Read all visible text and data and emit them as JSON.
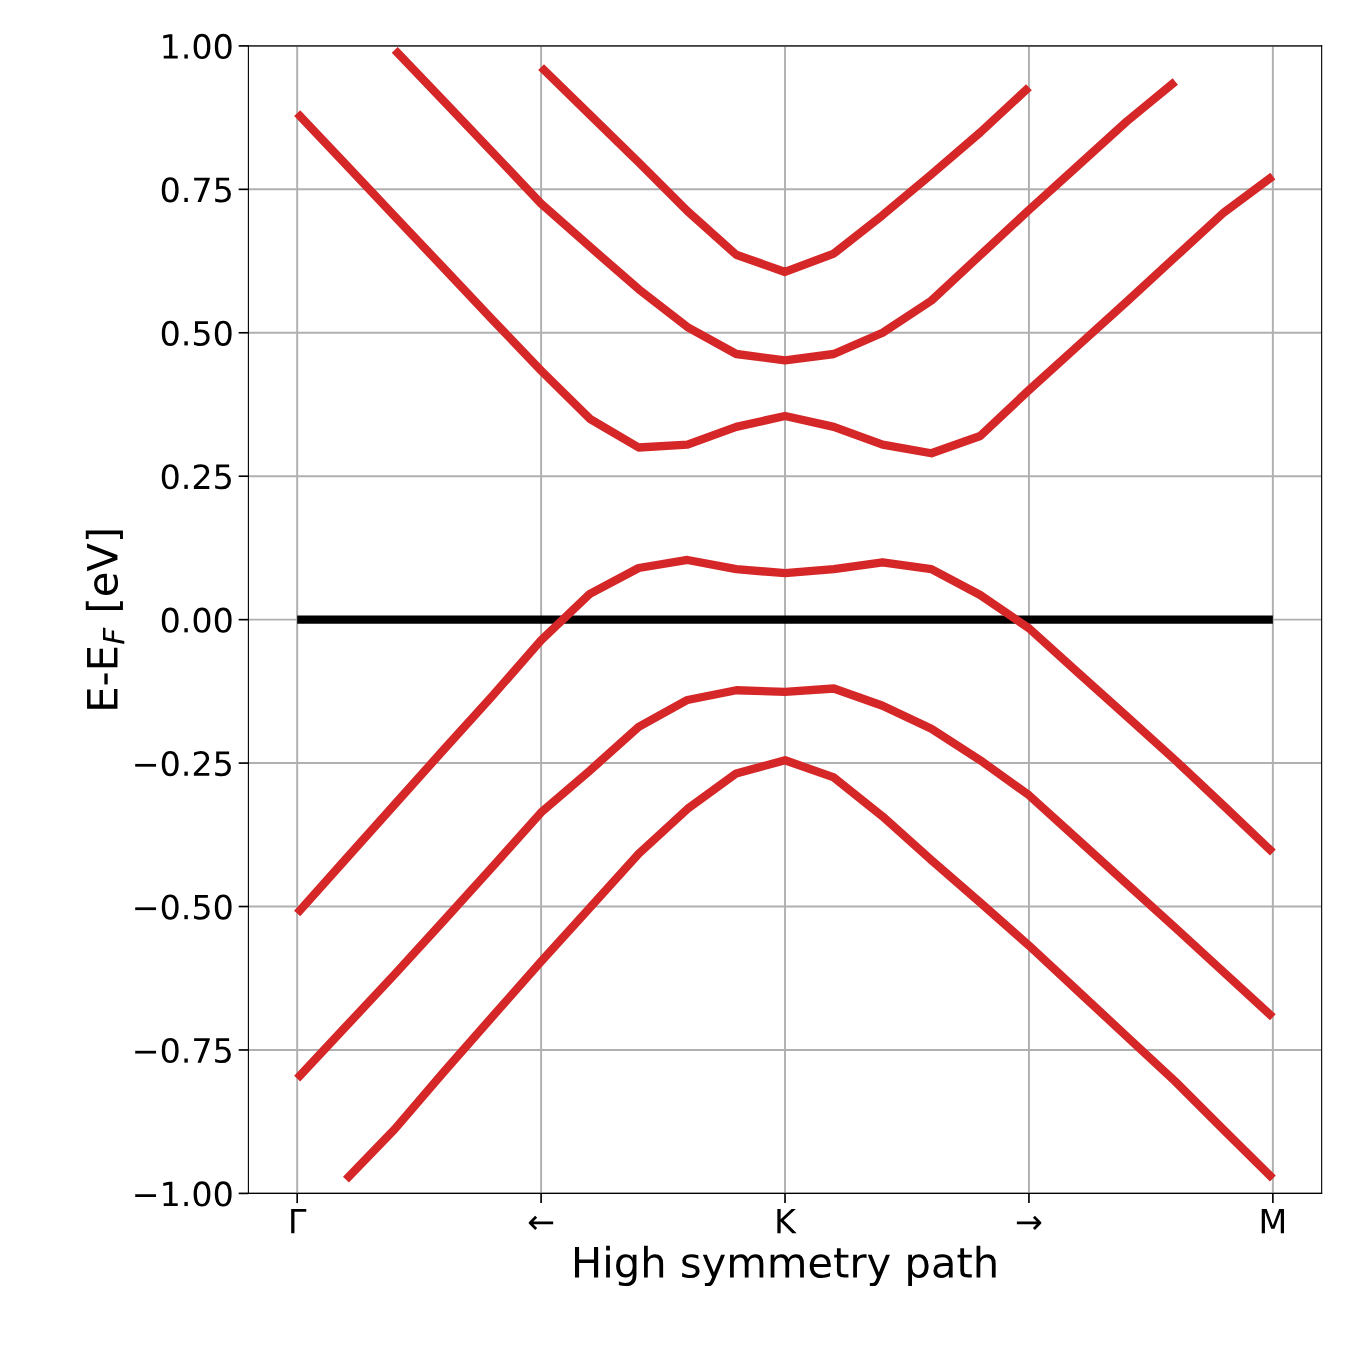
{
  "chart_data": {
    "type": "line",
    "xlabel": "High symmetry path",
    "ylabel": "E-E$_{F}$ [eV]",
    "categories": [
      "Γ",
      null,
      null,
      null,
      null,
      "←",
      null,
      null,
      null,
      null,
      "K",
      null,
      null,
      null,
      null,
      "→",
      null,
      null,
      null,
      null,
      "M"
    ],
    "ylim": [
      -1.0,
      1.0
    ],
    "yticks": [
      {
        "value": -1.0,
        "label": "−1.00"
      },
      {
        "value": -0.75,
        "label": "−0.75"
      },
      {
        "value": -0.5,
        "label": "−0.50"
      },
      {
        "value": -0.25,
        "label": "−0.25"
      },
      {
        "value": 0,
        "label": "0.00"
      },
      {
        "value": 0.25,
        "label": "0.25"
      },
      {
        "value": 0.5,
        "label": "0.50"
      },
      {
        "value": 0.75,
        "label": "0.75"
      },
      {
        "value": 1.0,
        "label": "1.00"
      }
    ],
    "grid": true,
    "marker": "none",
    "line_style": "solid",
    "series": [
      {
        "color": "#000000",
        "values": [
          0,
          0,
          0,
          0,
          0,
          0,
          0,
          0,
          0,
          0,
          0,
          0,
          0,
          0,
          0,
          0,
          0,
          0,
          0,
          0,
          0
        ]
      },
      {
        "color": "#d62728",
        "values": [
          null,
          null,
          null,
          null,
          null,
          0.963,
          0.88,
          0.797,
          0.712,
          0.636,
          0.606,
          0.638,
          0.705,
          0.776,
          0.849,
          0.928,
          null,
          null,
          null,
          null,
          null
        ]
      },
      {
        "color": "#d62728",
        "values": [
          null,
          null,
          0.993,
          0.904,
          0.815,
          0.725,
          0.65,
          0.576,
          0.51,
          0.463,
          0.452,
          0.463,
          0.5,
          0.556,
          0.635,
          0.714,
          0.791,
          0.868,
          0.938,
          null,
          null
        ]
      },
      {
        "color": "#d62728",
        "values": [
          0.883,
          0.793,
          0.703,
          0.613,
          0.523,
          0.434,
          0.35,
          0.3,
          0.305,
          0.336,
          0.355,
          0.336,
          0.305,
          0.29,
          0.32,
          0.4,
          0.477,
          0.554,
          0.632,
          0.71,
          0.773
        ]
      },
      {
        "color": "#d62728",
        "values": [
          -0.512,
          -0.417,
          -0.322,
          -0.227,
          -0.133,
          -0.036,
          0.045,
          0.09,
          0.104,
          0.088,
          0.081,
          0.088,
          0.1,
          0.088,
          0.043,
          -0.015,
          -0.092,
          -0.168,
          -0.245,
          -0.325,
          -0.406
        ]
      },
      {
        "color": "#d62728",
        "values": [
          -0.8,
          -0.709,
          -0.618,
          -0.525,
          -0.431,
          -0.336,
          -0.263,
          -0.187,
          -0.14,
          -0.123,
          -0.126,
          -0.12,
          -0.15,
          -0.19,
          -0.245,
          -0.306,
          -0.383,
          -0.46,
          -0.537,
          -0.615,
          -0.693
        ]
      },
      {
        "color": "#d62728",
        "values": [
          null,
          -0.976,
          -0.888,
          -0.789,
          -0.692,
          -0.596,
          -0.502,
          -0.408,
          -0.33,
          -0.268,
          -0.245,
          -0.275,
          -0.343,
          -0.419,
          -0.493,
          -0.568,
          -0.647,
          -0.726,
          -0.805,
          -0.89,
          -0.974
        ]
      }
    ]
  }
}
